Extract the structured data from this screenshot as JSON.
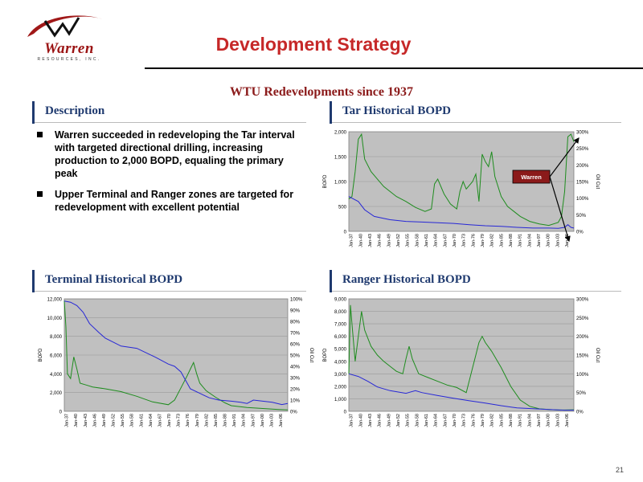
{
  "logo": {
    "name": "Warren",
    "sub": "RESOURCES, INC."
  },
  "title": "Development Strategy",
  "subtitle": "WTU Redevelopments since 1937",
  "description": {
    "heading": "Description",
    "bullets": [
      "Warren succeeded in redeveloping the Tar interval with targeted directional drilling, increasing production to 2,000 BOPD, equaling the primary peak",
      "Upper Terminal and Ranger zones are targeted for redevelopment with excellent potential"
    ]
  },
  "page_number": "21",
  "colors": {
    "heading": "#1f3a6f",
    "title": "#c62828",
    "oil_series": "#1e8c1e",
    "cut_series": "#2727d6",
    "plot_bg": "#c0c0c0",
    "callout": "#8b1a1a"
  },
  "chart_data": [
    {
      "id": "tar",
      "heading": "Tar Historical BOPD",
      "type": "line",
      "ylabel": "BOPD",
      "y2label": "Oil Cut",
      "ylim": [
        0,
        2000
      ],
      "yticks": [
        "0",
        "500",
        "1,000",
        "1,500",
        "2,000"
      ],
      "y2lim": [
        0,
        300
      ],
      "y2ticks": [
        "0%",
        "50%",
        "100%",
        "150%",
        "200%",
        "250%",
        "300%"
      ],
      "x_categories": [
        "Jan-37",
        "Jan-40",
        "Jan-43",
        "Jan-46",
        "Jan-49",
        "Jan-52",
        "Jan-55",
        "Jan-58",
        "Jan-61",
        "Jan-64",
        "Jan-67",
        "Jan-70",
        "Jan-73",
        "Jan-76",
        "Jan-79",
        "Jan-82",
        "Jan-85",
        "Jan-88",
        "Jan-91",
        "Jan-94",
        "Jan-97",
        "Jan-00",
        "Jan-03",
        "Jan-06"
      ],
      "annotation": "Warren",
      "series": [
        {
          "axis": "left",
          "color": "#1e8c1e",
          "x": [
            1937,
            1938,
            1939,
            1940,
            1941,
            1942,
            1944,
            1946,
            1948,
            1950,
            1952,
            1955,
            1958,
            1961,
            1963,
            1964,
            1965,
            1967,
            1969,
            1971,
            1972,
            1973,
            1974,
            1976,
            1977,
            1978,
            1979,
            1980,
            1981,
            1982,
            1983,
            1985,
            1987,
            1989,
            1991,
            1994,
            1997,
            2000,
            2003,
            2004,
            2005,
            2006,
            2007,
            2007.9
          ],
          "y": [
            650,
            700,
            1200,
            1850,
            1950,
            1450,
            1200,
            1050,
            900,
            800,
            700,
            600,
            480,
            400,
            450,
            950,
            1050,
            750,
            550,
            450,
            800,
            1000,
            850,
            1000,
            1150,
            600,
            1550,
            1400,
            1300,
            1600,
            1100,
            700,
            500,
            400,
            300,
            200,
            150,
            120,
            180,
            300,
            800,
            1900,
            1950,
            1800
          ]
        },
        {
          "axis": "right",
          "color": "#2727d6",
          "x": [
            1937,
            1938,
            1940,
            1942,
            1945,
            1950,
            1955,
            1960,
            1965,
            1970,
            1975,
            1980,
            1985,
            1990,
            1995,
            2000,
            2003,
            2005,
            2006,
            2007,
            2007.9
          ],
          "y": [
            105,
            100,
            90,
            65,
            45,
            35,
            30,
            28,
            26,
            24,
            20,
            17,
            15,
            12,
            10,
            10,
            9,
            12,
            20,
            12,
            10
          ]
        }
      ]
    },
    {
      "id": "terminal",
      "heading": "Terminal Historical BOPD",
      "type": "line",
      "ylabel": "BOPD",
      "y2label": "Oil Cut",
      "ylim": [
        0,
        12000
      ],
      "yticks": [
        "0",
        "2,000",
        "4,000",
        "6,000",
        "8,000",
        "10,000",
        "12,000"
      ],
      "y2lim": [
        0,
        100
      ],
      "y2ticks": [
        "0%",
        "10%",
        "20%",
        "30%",
        "40%",
        "50%",
        "60%",
        "70%",
        "80%",
        "90%",
        "100%"
      ],
      "x_categories": [
        "Jan-37",
        "Jan-40",
        "Jan-43",
        "Jan-46",
        "Jan-49",
        "Jan-52",
        "Jan-55",
        "Jan-58",
        "Jan-61",
        "Jan-64",
        "Jan-67",
        "Jan-70",
        "Jan-73",
        "Jan-76",
        "Jan-79",
        "Jan-82",
        "Jan-85",
        "Jan-88",
        "Jan-91",
        "Jan-94",
        "Jan-97",
        "Jan-00",
        "Jan-03",
        "Jan-06"
      ],
      "series": [
        {
          "axis": "left",
          "color": "#1e8c1e",
          "x": [
            1937,
            1937.5,
            1938,
            1939,
            1940,
            1941,
            1942,
            1944,
            1946,
            1950,
            1955,
            1960,
            1965,
            1970,
            1972,
            1974,
            1976,
            1977,
            1978,
            1979,
            1980,
            1982,
            1985,
            1988,
            1990,
            1995,
            2000,
            2005,
            2007.9
          ],
          "y": [
            11800,
            9000,
            4000,
            3500,
            5800,
            4500,
            3000,
            2800,
            2600,
            2400,
            2100,
            1600,
            1000,
            700,
            1200,
            2500,
            3800,
            4500,
            5200,
            4000,
            3000,
            2200,
            1500,
            900,
            600,
            400,
            300,
            200,
            150
          ]
        },
        {
          "axis": "right",
          "color": "#2727d6",
          "x": [
            1937,
            1939,
            1941,
            1943,
            1945,
            1948,
            1950,
            1955,
            1960,
            1963,
            1966,
            1970,
            1972,
            1974,
            1977,
            1980,
            1983,
            1986,
            1990,
            1993,
            1995,
            1997,
            2000,
            2003,
            2006,
            2007.9
          ],
          "y": [
            98,
            97,
            94,
            88,
            78,
            70,
            65,
            58,
            56,
            52,
            48,
            42,
            40,
            35,
            20,
            16,
            12,
            10,
            9,
            8,
            7,
            10,
            9,
            8,
            6,
            7
          ]
        }
      ]
    },
    {
      "id": "ranger",
      "heading": "Ranger Historical BOPD",
      "type": "line",
      "ylabel": "BOPD",
      "y2label": "Oil Cut",
      "ylim": [
        0,
        9000
      ],
      "yticks": [
        "0",
        "1,000",
        "2,000",
        "3,000",
        "4,000",
        "5,000",
        "6,000",
        "7,000",
        "8,000",
        "9,000"
      ],
      "y2lim": [
        0,
        300
      ],
      "y2ticks": [
        "0%",
        "50%",
        "100%",
        "150%",
        "200%",
        "250%",
        "300%"
      ],
      "x_categories": [
        "Jan-37",
        "Jan-40",
        "Jan-43",
        "Jan-46",
        "Jan-49",
        "Jan-52",
        "Jan-55",
        "Jan-58",
        "Jan-61",
        "Jan-64",
        "Jan-67",
        "Jan-70",
        "Jan-73",
        "Jan-76",
        "Jan-79",
        "Jan-82",
        "Jan-85",
        "Jan-88",
        "Jan-91",
        "Jan-94",
        "Jan-97",
        "Jan-00",
        "Jan-03",
        "Jan-06"
      ],
      "series": [
        {
          "axis": "left",
          "color": "#1e8c1e",
          "x": [
            1937,
            1937.5,
            1938,
            1939,
            1940,
            1941,
            1942,
            1944,
            1946,
            1948,
            1950,
            1952,
            1954,
            1955,
            1956,
            1957,
            1959,
            1962,
            1965,
            1968,
            1971,
            1974,
            1976,
            1977,
            1978,
            1979,
            1980,
            1982,
            1985,
            1988,
            1991,
            1994,
            1997,
            2000,
            2003,
            2005,
            2007.9
          ],
          "y": [
            3000,
            8500,
            7000,
            4000,
            6000,
            8000,
            6500,
            5200,
            4500,
            4000,
            3600,
            3200,
            3000,
            4200,
            5200,
            4200,
            3000,
            2700,
            2400,
            2100,
            1900,
            1500,
            3500,
            4500,
            5500,
            6000,
            5500,
            4800,
            3500,
            2000,
            900,
            400,
            200,
            150,
            100,
            100,
            120
          ]
        },
        {
          "axis": "right",
          "color": "#2727d6",
          "x": [
            1937,
            1940,
            1943,
            1946,
            1950,
            1955,
            1958,
            1960,
            1965,
            1970,
            1975,
            1980,
            1985,
            1990,
            1995,
            2000,
            2005,
            2007.9
          ],
          "y": [
            100,
            93,
            80,
            65,
            55,
            48,
            55,
            50,
            42,
            35,
            28,
            22,
            15,
            9,
            7,
            5,
            3,
            3
          ]
        }
      ]
    }
  ]
}
